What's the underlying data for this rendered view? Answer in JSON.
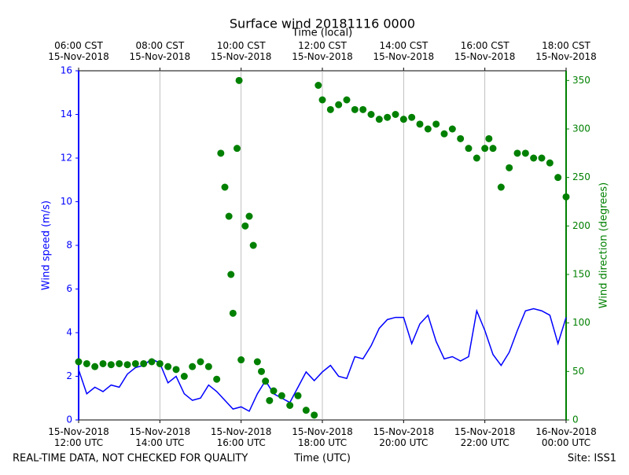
{
  "chart_data": {
    "type": "line",
    "title": "Surface wind 20181116 0000",
    "xlabel": "Time (UTC)",
    "x2label": "Time (local)",
    "ylabel": "Wind speed (m/s)",
    "y2label": "Wind direction (degrees)",
    "footer_left": "REAL-TIME DATA, NOT CHECKED FOR QUALITY",
    "footer_right": "Site: ISS1",
    "xlim": [
      12,
      24
    ],
    "xticks": [
      {
        "value": 12,
        "label": "15-Nov-2018\n12:00 UTC"
      },
      {
        "value": 14,
        "label": "15-Nov-2018\n14:00 UTC"
      },
      {
        "value": 16,
        "label": "15-Nov-2018\n16:00 UTC"
      },
      {
        "value": 18,
        "label": "15-Nov-2018\n18:00 UTC"
      },
      {
        "value": 20,
        "label": "15-Nov-2018\n20:00 UTC"
      },
      {
        "value": 22,
        "label": "15-Nov-2018\n22:00 UTC"
      },
      {
        "value": 24,
        "label": "16-Nov-2018\n00:00 UTC"
      }
    ],
    "x2ticks": [
      {
        "value": 12,
        "label": "06:00 CST\n15-Nov-2018"
      },
      {
        "value": 14,
        "label": "08:00 CST\n15-Nov-2018"
      },
      {
        "value": 16,
        "label": "10:00 CST\n15-Nov-2018"
      },
      {
        "value": 18,
        "label": "12:00 CST\n15-Nov-2018"
      },
      {
        "value": 20,
        "label": "14:00 CST\n15-Nov-2018"
      },
      {
        "value": 22,
        "label": "16:00 CST\n15-Nov-2018"
      },
      {
        "value": 24,
        "label": "18:00 CST\n15-Nov-2018"
      }
    ],
    "ylim": [
      0,
      16
    ],
    "yticks": [
      0,
      2,
      4,
      6,
      8,
      10,
      12,
      14,
      16
    ],
    "y2lim": [
      0,
      360
    ],
    "y2ticks": [
      0,
      50,
      100,
      150,
      200,
      250,
      300,
      350
    ],
    "grid": true,
    "left_color": "#0000ff",
    "right_color": "#008000",
    "series": [
      {
        "name": "Wind speed",
        "type": "line",
        "axis": "y",
        "color": "#0000ff",
        "x": [
          12.0,
          12.2,
          12.4,
          12.6,
          12.8,
          13.0,
          13.2,
          13.4,
          13.6,
          13.8,
          14.0,
          14.2,
          14.4,
          14.6,
          14.8,
          15.0,
          15.2,
          15.4,
          15.6,
          15.8,
          16.0,
          16.2,
          16.4,
          16.6,
          16.8,
          17.0,
          17.2,
          17.4,
          17.6,
          17.8,
          18.0,
          18.2,
          18.4,
          18.6,
          18.8,
          19.0,
          19.2,
          19.4,
          19.6,
          19.8,
          20.0,
          20.2,
          20.4,
          20.6,
          20.8,
          21.0,
          21.2,
          21.4,
          21.6,
          21.8,
          22.0,
          22.2,
          22.4,
          22.6,
          22.8,
          23.0,
          23.2,
          23.4,
          23.6,
          23.8,
          24.0
        ],
        "values": [
          2.3,
          1.2,
          1.5,
          1.3,
          1.6,
          1.5,
          2.1,
          2.4,
          2.5,
          2.8,
          2.6,
          1.7,
          2.0,
          1.2,
          0.9,
          1.0,
          1.6,
          1.3,
          0.9,
          0.5,
          0.6,
          0.4,
          1.2,
          1.8,
          1.2,
          1.0,
          0.8,
          1.5,
          2.2,
          1.8,
          2.2,
          2.5,
          2.0,
          1.9,
          2.9,
          2.8,
          3.4,
          4.2,
          4.6,
          4.7,
          4.7,
          3.5,
          4.4,
          4.8,
          3.6,
          2.8,
          2.9,
          2.7,
          2.9,
          5.0,
          4.1,
          3.0,
          2.5,
          3.1,
          4.1,
          5.0,
          5.1,
          5.0,
          4.8,
          3.5,
          4.7
        ]
      },
      {
        "name": "Wind direction",
        "type": "scatter",
        "axis": "y2",
        "color": "#008000",
        "x": [
          12.0,
          12.2,
          12.4,
          12.6,
          12.8,
          13.0,
          13.2,
          13.4,
          13.6,
          13.8,
          14.0,
          14.2,
          14.4,
          14.6,
          14.8,
          15.0,
          15.2,
          15.4,
          15.5,
          15.6,
          15.7,
          15.75,
          15.8,
          15.9,
          15.95,
          16.0,
          16.1,
          16.2,
          16.3,
          16.4,
          16.5,
          16.6,
          16.7,
          16.8,
          17.0,
          17.2,
          17.4,
          17.6,
          17.8,
          17.9,
          18.0,
          18.2,
          18.4,
          18.6,
          18.8,
          19.0,
          19.2,
          19.4,
          19.6,
          19.8,
          20.0,
          20.2,
          20.4,
          20.6,
          20.8,
          21.0,
          21.2,
          21.4,
          21.6,
          21.8,
          22.0,
          22.1,
          22.2,
          22.4,
          22.6,
          22.8,
          23.0,
          23.2,
          23.4,
          23.6,
          23.8,
          24.0
        ],
        "values": [
          60,
          58,
          55,
          58,
          57,
          58,
          57,
          58,
          58,
          60,
          58,
          55,
          52,
          45,
          55,
          60,
          55,
          42,
          275,
          240,
          210,
          150,
          110,
          280,
          350,
          62,
          200,
          210,
          180,
          60,
          50,
          40,
          20,
          30,
          25,
          15,
          25,
          10,
          5,
          345,
          330,
          320,
          325,
          330,
          320,
          320,
          315,
          310,
          312,
          315,
          310,
          312,
          305,
          300,
          305,
          295,
          300,
          290,
          280,
          270,
          280,
          290,
          280,
          240,
          260,
          275,
          275,
          270,
          270,
          265,
          250,
          230
        ]
      }
    ]
  }
}
